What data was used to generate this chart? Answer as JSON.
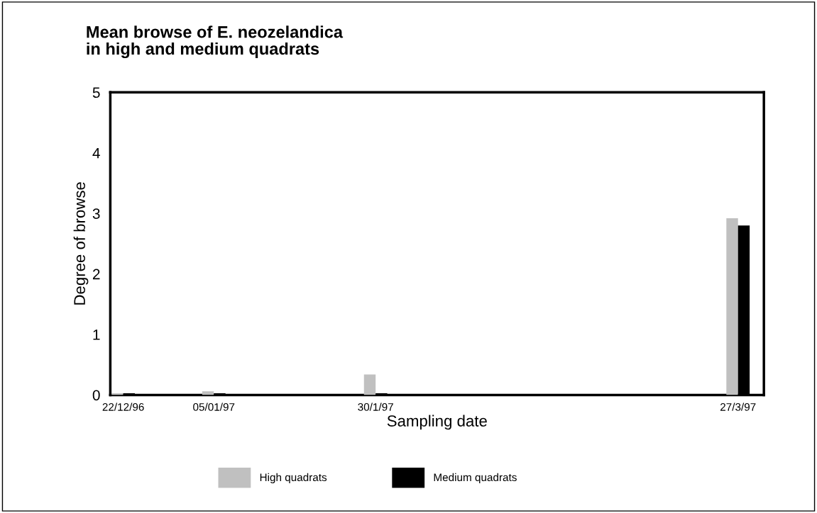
{
  "chart_data": {
    "type": "bar",
    "title": "Mean browse of E. neozelandica\nin high and medium quadrats",
    "xlabel": "Sampling date",
    "ylabel": "Degree of browse",
    "x": [
      "1996-12-22",
      "1997-01-05",
      "1997-01-30",
      "1997-03-27"
    ],
    "series": [
      {
        "name": "High quadrats",
        "color": "#c0c0c0",
        "values": [
          0.03,
          0.06,
          0.34,
          2.92
        ]
      },
      {
        "name": "Medium quadrats",
        "color": "#000000",
        "values": [
          0.03,
          0.03,
          0.03,
          2.8
        ]
      }
    ],
    "xlim": [
      "1996-12-20",
      "1997-03-31"
    ],
    "xticks": [
      {
        "value": "1996-12-22",
        "label": "22/12/96"
      },
      {
        "value": "1997-01-05",
        "label": "05/01/97"
      },
      {
        "value": "1997-01-30",
        "label": "30/1/97"
      },
      {
        "value": "1997-03-27",
        "label": "27/3/97"
      }
    ],
    "ylim": [
      0,
      5
    ],
    "yticks": [
      0,
      1,
      2,
      3,
      4,
      5
    ],
    "grid": false,
    "legend": "bottom"
  }
}
